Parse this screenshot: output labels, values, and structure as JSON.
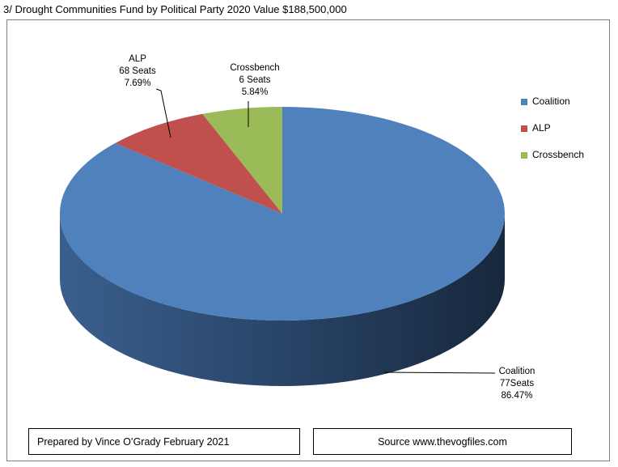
{
  "title": "3/ Drought Communities Fund by Political Party 2020 Value $188,500,000",
  "chart_data": {
    "type": "pie",
    "title": "3/ Drought Communities Fund by Political Party 2020 Value $188,500,000",
    "slices": [
      {
        "name": "Coalition",
        "value": 86.47,
        "label_lines": [
          "Coalition",
          "77Seats",
          "86.47%"
        ],
        "color": "#4f81bd"
      },
      {
        "name": "ALP",
        "value": 7.69,
        "label_lines": [
          "ALP",
          "68 Seats",
          "7.69%"
        ],
        "color": "#c0504d"
      },
      {
        "name": "Crossbench",
        "value": 5.84,
        "label_lines": [
          "Crossbench",
          "6 Seats",
          "5.84%"
        ],
        "color": "#9bbb59"
      }
    ],
    "legend": [
      "Coalition",
      "ALP",
      "Crossbench"
    ],
    "legend_position": "right"
  },
  "footer": {
    "prepared_by": "Prepared by Vince O’Grady February 2021",
    "source": "Source www.thevogfiles.com"
  }
}
